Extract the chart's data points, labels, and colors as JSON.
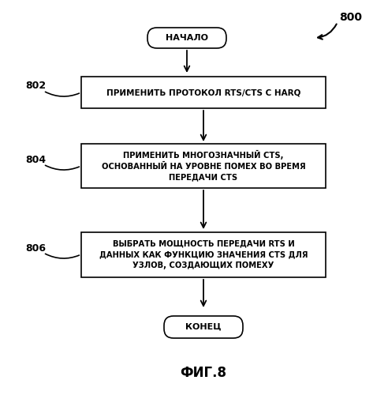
{
  "bg_color": "#ffffff",
  "label_800": "800",
  "label_802": "802",
  "label_804": "804",
  "label_806": "806",
  "start_text": "НАЧАЛО",
  "box1_text": "ПРИМЕНИТЬ ПРОТОКОЛ RTS/CTS С HARQ",
  "box2_line1": "ПРИМЕНИТЬ МНОГОЗНАЧНЫЙ CTS,",
  "box2_line2": "ОСНОВАННЫЙ НА УРОВНЕ ПОМЕХ ВО ВРЕМЯ",
  "box2_line3": "ПЕРЕДАЧИ CTS",
  "box3_line1": "ВЫБРАТЬ МОЩНОСТЬ ПЕРЕДАЧИ RTS И",
  "box3_line2": "ДАННЫХ КАК ФУНКЦИЮ ЗНАЧЕНИЯ CTS ДЛЯ",
  "box3_line3": "УЗЛОВ, СОЗДАЮЩИХ ПОМЕХУ",
  "end_text": "КОНЕЦ",
  "caption": "ФИГ.8",
  "box_facecolor": "#ffffff",
  "box_edgecolor": "#000000",
  "text_color": "#000000",
  "arrow_color": "#000000",
  "fig_w": 4.73,
  "fig_h": 5.0,
  "dpi": 100
}
